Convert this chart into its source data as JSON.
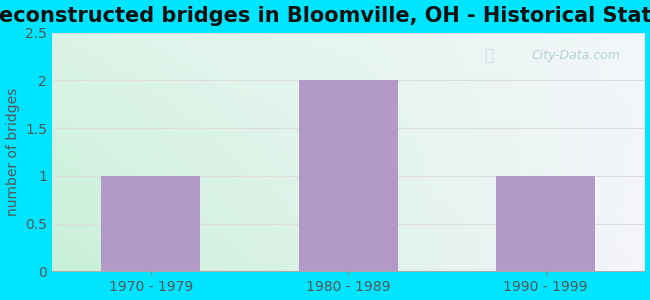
{
  "title": "Reconstructed bridges in Bloomville, OH - Historical Statistics",
  "categories": [
    "1970 - 1979",
    "1980 - 1989",
    "1990 - 1999"
  ],
  "values": [
    1,
    2,
    1
  ],
  "bar_color": "#b399c8",
  "ylabel": "number of bridges",
  "ylim": [
    0,
    2.5
  ],
  "yticks": [
    0,
    0.5,
    1,
    1.5,
    2,
    2.5
  ],
  "title_fontsize": 15,
  "ylabel_fontsize": 10,
  "tick_fontsize": 10,
  "fig_bg_color": "#00e5ff",
  "plot_bg_left": "#c8f0d8",
  "plot_bg_right": "#f5f5fa",
  "ylabel_color": "#555555",
  "tick_color": "#555555",
  "title_color": "#111111",
  "grid_color": "#dddddd",
  "watermark": "City-Data.com",
  "watermark_color": "#aacccc",
  "bar_width": 0.5
}
